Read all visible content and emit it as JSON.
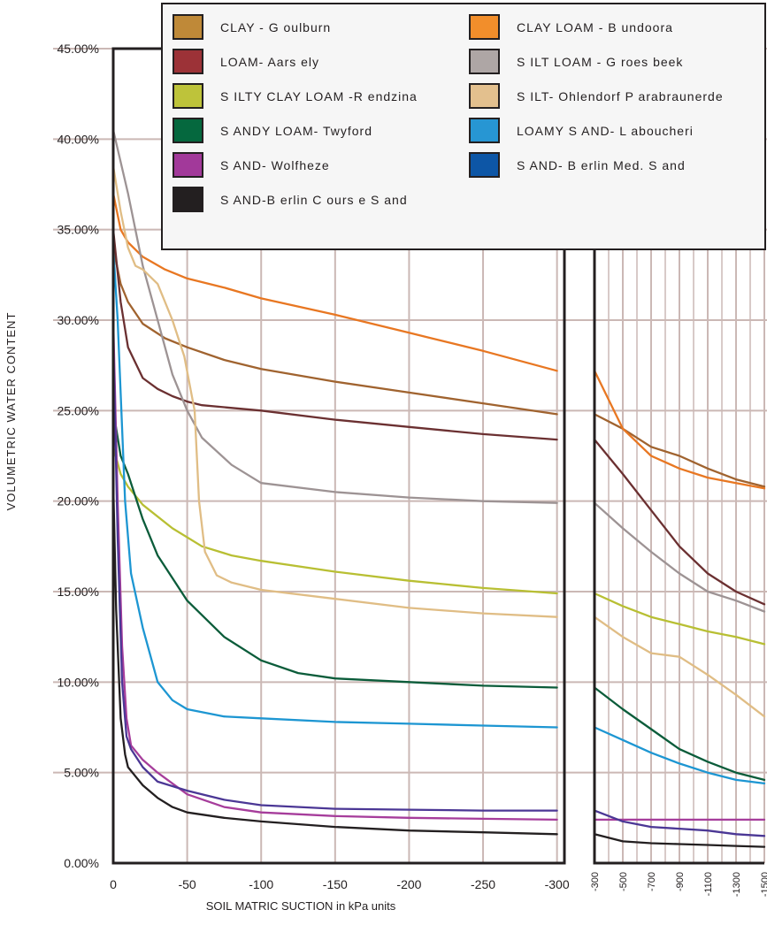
{
  "chart_data": {
    "type": "line",
    "title": "",
    "xlabel": "SOIL MATRIC SUCTION in kPa units",
    "ylabel": "VOLUMETRIC WATER CONTENT",
    "ylim": [
      0,
      45
    ],
    "y_ticks": [
      "0.00%",
      "5.00%",
      "10.00%",
      "15.00%",
      "20.00%",
      "25.00%",
      "30.00%",
      "35.00%",
      "40.00%",
      "45.00%"
    ],
    "panels": [
      {
        "name": "main",
        "xlim": [
          0,
          -305
        ],
        "x_ticks": [
          "0",
          "-50",
          "-100",
          "-150",
          "-200",
          "-250",
          "-300"
        ]
      },
      {
        "name": "extension",
        "xlim": [
          -300,
          -1500
        ],
        "x_ticks": [
          "-300",
          "-500",
          "-700",
          "-900",
          "-1100",
          "-1300",
          "-1500"
        ]
      }
    ],
    "grid": true,
    "legend_position": "top",
    "series": [
      {
        "name": "CLAY - Goulburn",
        "color": "#a0632f",
        "x": [
          0,
          -5,
          -10,
          -20,
          -35,
          -50,
          -75,
          -100,
          -150,
          -200,
          -250,
          -300,
          -500,
          -700,
          -900,
          -1100,
          -1300,
          -1500
        ],
        "y": [
          34,
          32,
          31,
          29.8,
          29,
          28.5,
          27.8,
          27.3,
          26.6,
          26,
          25.4,
          24.8,
          24,
          23,
          22.5,
          21.8,
          21.2,
          20.8
        ]
      },
      {
        "name": "CLAY LOAM - Bundoora",
        "color": "#e87722",
        "x": [
          0,
          -5,
          -10,
          -20,
          -35,
          -50,
          -75,
          -100,
          -150,
          -200,
          -250,
          -300,
          -500,
          -700,
          -900,
          -1100,
          -1300,
          -1500
        ],
        "y": [
          37,
          35,
          34.3,
          33.5,
          32.8,
          32.3,
          31.8,
          31.2,
          30.3,
          29.3,
          28.3,
          27.2,
          24,
          22.5,
          21.8,
          21.3,
          21,
          20.7
        ]
      },
      {
        "name": "LOAM- Aarsely",
        "color": "#6b3031",
        "x": [
          0,
          -5,
          -10,
          -20,
          -30,
          -40,
          -50,
          -60,
          -100,
          -150,
          -200,
          -250,
          -300,
          -500,
          -700,
          -900,
          -1100,
          -1300,
          -1500
        ],
        "y": [
          35,
          31,
          28.5,
          26.8,
          26.2,
          25.8,
          25.5,
          25.3,
          25,
          24.5,
          24.1,
          23.7,
          23.4,
          21.5,
          19.5,
          17.5,
          16,
          15,
          14.3
        ]
      },
      {
        "name": "SILT LOAM - Groesbeek",
        "color": "#9d9394",
        "x": [
          0,
          -10,
          -20,
          -30,
          -40,
          -50,
          -60,
          -80,
          -100,
          -150,
          -200,
          -250,
          -300,
          -500,
          -700,
          -900,
          -1100,
          -1300,
          -1500
        ],
        "y": [
          40.5,
          37,
          33,
          30,
          27,
          25,
          23.5,
          22,
          21,
          20.5,
          20.2,
          20,
          19.9,
          18.5,
          17.2,
          16,
          15,
          14.5,
          13.9
        ]
      },
      {
        "name": "SILTY CLAY LOAM -Rendzina",
        "color": "#b8bf33",
        "x": [
          0,
          -5,
          -10,
          -20,
          -40,
          -60,
          -80,
          -100,
          -150,
          -200,
          -250,
          -300,
          -500,
          -700,
          -900,
          -1100,
          -1300,
          -1500
        ],
        "y": [
          23,
          21.5,
          20.8,
          19.8,
          18.5,
          17.5,
          17,
          16.7,
          16.1,
          15.6,
          15.2,
          14.9,
          14.2,
          13.6,
          13.2,
          12.8,
          12.5,
          12.1
        ]
      },
      {
        "name": "SILT- Ohlendorf Parabraunerde",
        "color": "#e0bd85",
        "x": [
          0,
          -5,
          -10,
          -15,
          -20,
          -30,
          -40,
          -48,
          -55,
          -58,
          -62,
          -70,
          -80,
          -100,
          -150,
          -200,
          -250,
          -300,
          -500,
          -700,
          -900,
          -1100,
          -1300,
          -1500
        ],
        "y": [
          38.5,
          36,
          34,
          33,
          32.8,
          32,
          30,
          28,
          25,
          20,
          17.2,
          15.9,
          15.5,
          15.1,
          14.6,
          14.1,
          13.8,
          13.6,
          12.5,
          11.6,
          11.4,
          10.4,
          9.3,
          8.1
        ]
      },
      {
        "name": "SANDY LOAM- Twyford",
        "color": "#0b5c3a",
        "x": [
          0,
          -5,
          -10,
          -20,
          -30,
          -50,
          -75,
          -100,
          -125,
          -150,
          -200,
          -250,
          -300,
          -500,
          -700,
          -900,
          -1100,
          -1300,
          -1500
        ],
        "y": [
          25,
          22.5,
          21.5,
          19,
          17,
          14.5,
          12.5,
          11.2,
          10.5,
          10.2,
          10,
          9.8,
          9.7,
          8.5,
          7.4,
          6.3,
          5.6,
          5,
          4.6
        ]
      },
      {
        "name": "LOAMY SAND- Laboucheri",
        "color": "#1d96d2",
        "x": [
          0,
          -3,
          -8,
          -12,
          -20,
          -30,
          -40,
          -50,
          -75,
          -100,
          -150,
          -200,
          -250,
          -300,
          -500,
          -700,
          -900,
          -1100,
          -1300,
          -1500
        ],
        "y": [
          34,
          30,
          20,
          16,
          13,
          10,
          9,
          8.5,
          8.1,
          8,
          7.8,
          7.7,
          7.6,
          7.5,
          6.8,
          6.1,
          5.5,
          5,
          4.6,
          4.4
        ]
      },
      {
        "name": "SAND- Wolfheze",
        "color": "#a63d9b",
        "x": [
          0,
          -3,
          -6,
          -9,
          -12,
          -20,
          -30,
          -50,
          -75,
          -100,
          -150,
          -200,
          -250,
          -300,
          -500,
          -700,
          -900,
          -1100,
          -1300,
          -1500
        ],
        "y": [
          30,
          20,
          12,
          8,
          6.5,
          5.7,
          5,
          3.8,
          3.1,
          2.8,
          2.6,
          2.5,
          2.45,
          2.4,
          2.4,
          2.4,
          2.4,
          2.4,
          2.4,
          2.4
        ]
      },
      {
        "name": "SAND- Berlin Med. Sand",
        "color": "#4b3795",
        "x": [
          0,
          -3,
          -6,
          -9,
          -12,
          -20,
          -30,
          -50,
          -75,
          -100,
          -150,
          -200,
          -250,
          -300,
          -500,
          -700,
          -900,
          -1100,
          -1300,
          -1500
        ],
        "y": [
          29,
          18,
          10,
          7,
          6.3,
          5.3,
          4.5,
          4,
          3.5,
          3.2,
          3,
          2.95,
          2.9,
          2.9,
          2.3,
          2,
          1.9,
          1.8,
          1.6,
          1.5
        ]
      },
      {
        "name": "SAND-Berlin Course Sand",
        "color": "#231f20",
        "x": [
          0,
          -2,
          -5,
          -8,
          -10,
          -15,
          -20,
          -30,
          -40,
          -50,
          -75,
          -100,
          -150,
          -200,
          -250,
          -300,
          -500,
          -700,
          -900,
          -1100,
          -1300,
          -1500
        ],
        "y": [
          21,
          14,
          8,
          6,
          5.3,
          4.8,
          4.3,
          3.6,
          3.1,
          2.8,
          2.5,
          2.3,
          2,
          1.8,
          1.7,
          1.6,
          1.2,
          1.1,
          1.05,
          1,
          0.95,
          0.9
        ]
      }
    ],
    "legend": [
      {
        "label": "CLAY - G oulburn",
        "swatch": "#bf8938"
      },
      {
        "label": "CLAY LOAM - B undoora",
        "swatch": "#f28e2b"
      },
      {
        "label": "LOAM- Aars ely",
        "swatch": "#9c3237"
      },
      {
        "label": "S ILT LOAM - G roes beek",
        "swatch": "#aea6a5"
      },
      {
        "label": "S ILTY CLAY LOAM -R endzina",
        "swatch": "#bec33a"
      },
      {
        "label": "S ILT- Ohlendorf P arabraunerde",
        "swatch": "#e3c08e"
      },
      {
        "label": "S ANDY LOAM- Twyford",
        "swatch": "#05683e"
      },
      {
        "label": "LOAMY S AND- L aboucheri",
        "swatch": "#2796d3"
      },
      {
        "label": "S AND- Wolfheze",
        "swatch": "#a2399a"
      },
      {
        "label": "S AND- B erlin Med. S and",
        "swatch": "#0d56a6"
      },
      {
        "label": "S AND-B erlin C ours e S and",
        "swatch": "#231f20"
      }
    ]
  }
}
